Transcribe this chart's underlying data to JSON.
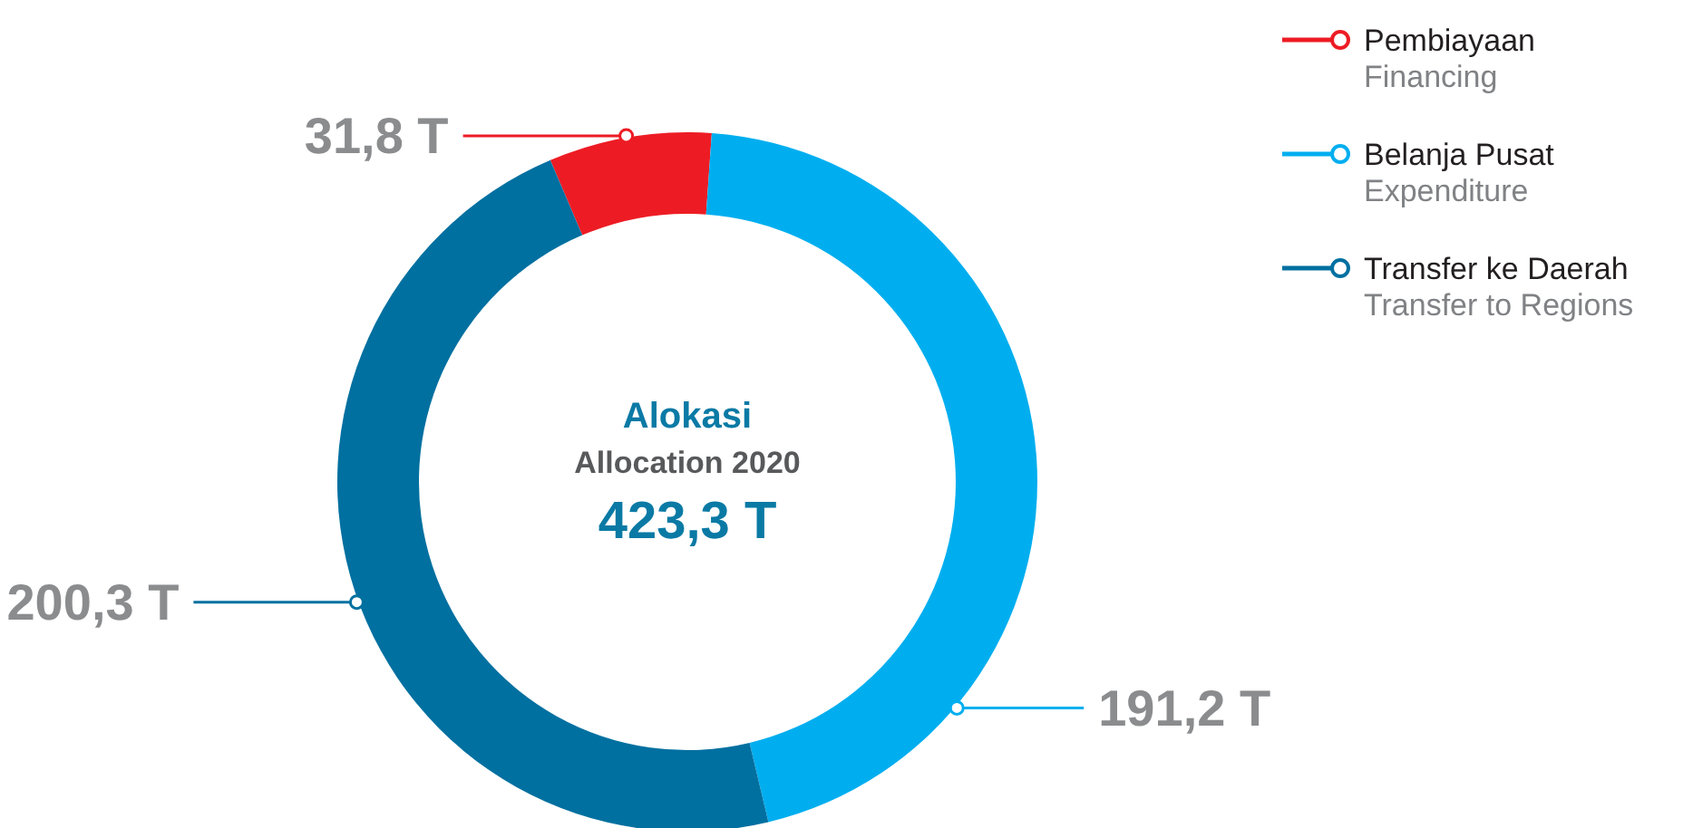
{
  "chart_data": {
    "type": "donut",
    "title": "Alokasi",
    "subtitle": "Allocation 2020",
    "annotations": [
      "423,3 T"
    ],
    "categories": [
      "Pembiayaan\nFinancing",
      "Belanja Pusat\nExpenditure",
      "Transfer ke Daerah\nTransfer to Regions"
    ],
    "values": [
      31.8,
      191.2,
      200.3
    ],
    "colors": [
      "#ed1c24",
      "#00aeef",
      "#0070a0"
    ],
    "value_labels": [
      "31,8 T",
      "191,2 T",
      "200,3 T"
    ],
    "legend": "top right"
  }
}
